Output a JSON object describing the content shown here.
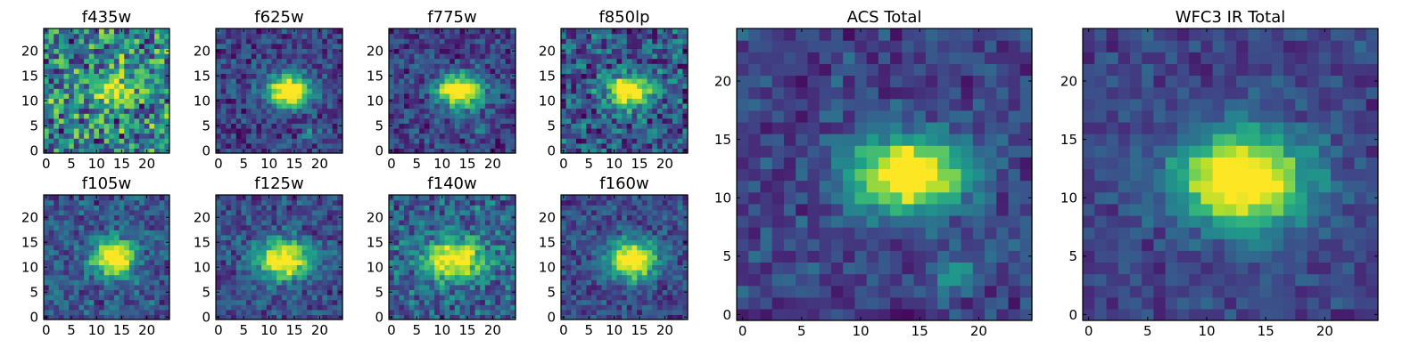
{
  "figure": {
    "background": "#ffffff",
    "colormap": "viridis"
  },
  "chart_data": [
    {
      "type": "heatmap",
      "title": "f435w",
      "grid": false,
      "rows": 25,
      "cols": 25,
      "xlim": [
        -0.5,
        24.5
      ],
      "ylim": [
        -0.5,
        24.5
      ],
      "xticks": [
        0,
        5,
        10,
        15,
        20
      ],
      "yticks": [
        0,
        5,
        10,
        15,
        20
      ],
      "source": {
        "cx": 13,
        "cy": 12.5,
        "sx": 2.3,
        "sy": 2.0,
        "peak": 0.55,
        "base": 0.6,
        "noise": 0.35,
        "seed": 11,
        "extras": []
      }
    },
    {
      "type": "heatmap",
      "title": "f625w",
      "grid": false,
      "rows": 25,
      "cols": 25,
      "xlim": [
        -0.5,
        24.5
      ],
      "ylim": [
        -0.5,
        24.5
      ],
      "xticks": [
        0,
        5,
        10,
        15,
        20
      ],
      "yticks": [
        0,
        5,
        10,
        15,
        20
      ],
      "source": {
        "cx": 14,
        "cy": 12,
        "sx": 3.2,
        "sy": 2.2,
        "peak": 1.0,
        "base": 0.26,
        "noise": 0.16,
        "seed": 23,
        "extras": [
          {
            "cx": 18,
            "cy": 4,
            "sx": 1.0,
            "sy": 1.0,
            "peak": 0.25
          }
        ]
      }
    },
    {
      "type": "heatmap",
      "title": "f775w",
      "grid": false,
      "rows": 25,
      "cols": 25,
      "xlim": [
        -0.5,
        24.5
      ],
      "ylim": [
        -0.5,
        24.5
      ],
      "xticks": [
        0,
        5,
        10,
        15,
        20
      ],
      "yticks": [
        0,
        5,
        10,
        15,
        20
      ],
      "source": {
        "cx": 13.5,
        "cy": 12,
        "sx": 3.3,
        "sy": 2.3,
        "peak": 1.0,
        "base": 0.25,
        "noise": 0.17,
        "seed": 37,
        "extras": [
          {
            "cx": 18,
            "cy": 4,
            "sx": 1.0,
            "sy": 1.0,
            "peak": 0.3
          }
        ]
      }
    },
    {
      "type": "heatmap",
      "title": "f850lp",
      "grid": false,
      "rows": 25,
      "cols": 25,
      "xlim": [
        -0.5,
        24.5
      ],
      "ylim": [
        -0.5,
        24.5
      ],
      "xticks": [
        0,
        5,
        10,
        15,
        20
      ],
      "yticks": [
        0,
        5,
        10,
        15,
        20
      ],
      "source": {
        "cx": 13,
        "cy": 12,
        "sx": 3.2,
        "sy": 2.3,
        "peak": 0.85,
        "base": 0.35,
        "noise": 0.25,
        "seed": 41,
        "extras": [
          {
            "cx": 18,
            "cy": 4,
            "sx": 1.0,
            "sy": 1.0,
            "peak": 0.3
          }
        ]
      }
    },
    {
      "type": "heatmap",
      "title": "f105w",
      "grid": false,
      "rows": 25,
      "cols": 25,
      "xlim": [
        -0.5,
        24.5
      ],
      "ylim": [
        -0.5,
        24.5
      ],
      "xticks": [
        0,
        5,
        10,
        15,
        20
      ],
      "yticks": [
        0,
        5,
        10,
        15,
        20
      ],
      "source": {
        "cx": 13.5,
        "cy": 12,
        "sx": 3.0,
        "sy": 2.4,
        "peak": 0.95,
        "base": 0.35,
        "noise": 0.17,
        "seed": 53,
        "extras": []
      }
    },
    {
      "type": "heatmap",
      "title": "f125w",
      "grid": false,
      "rows": 25,
      "cols": 25,
      "xlim": [
        -0.5,
        24.5
      ],
      "ylim": [
        -0.5,
        24.5
      ],
      "xticks": [
        0,
        5,
        10,
        15,
        20
      ],
      "yticks": [
        0,
        5,
        10,
        15,
        20
      ],
      "source": {
        "cx": 13,
        "cy": 11.5,
        "sx": 3.6,
        "sy": 2.7,
        "peak": 0.9,
        "base": 0.32,
        "noise": 0.14,
        "seed": 67,
        "extras": []
      }
    },
    {
      "type": "heatmap",
      "title": "f140w",
      "grid": false,
      "rows": 25,
      "cols": 25,
      "xlim": [
        -0.5,
        24.5
      ],
      "ylim": [
        -0.5,
        24.5
      ],
      "xticks": [
        0,
        5,
        10,
        15,
        20
      ],
      "yticks": [
        0,
        5,
        10,
        15,
        20
      ],
      "source": {
        "cx": 12.5,
        "cy": 11.5,
        "sx": 4.2,
        "sy": 2.8,
        "peak": 0.8,
        "base": 0.4,
        "noise": 0.2,
        "seed": 79,
        "extras": []
      }
    },
    {
      "type": "heatmap",
      "title": "f160w",
      "grid": false,
      "rows": 25,
      "cols": 25,
      "xlim": [
        -0.5,
        24.5
      ],
      "ylim": [
        -0.5,
        24.5
      ],
      "xticks": [
        0,
        5,
        10,
        15,
        20
      ],
      "yticks": [
        0,
        5,
        10,
        15,
        20
      ],
      "source": {
        "cx": 13.5,
        "cy": 11.5,
        "sx": 3.3,
        "sy": 2.6,
        "peak": 0.95,
        "base": 0.3,
        "noise": 0.14,
        "seed": 83,
        "extras": []
      }
    },
    {
      "type": "heatmap",
      "title": "ACS Total",
      "grid": false,
      "rows": 25,
      "cols": 25,
      "xlim": [
        -0.5,
        24.5
      ],
      "ylim": [
        -0.5,
        24.5
      ],
      "xticks": [
        0,
        5,
        10,
        15,
        20
      ],
      "yticks": [
        0,
        5,
        10,
        15,
        20
      ],
      "source": {
        "cx": 14,
        "cy": 12,
        "sx": 3.4,
        "sy": 2.2,
        "peak": 1.0,
        "base": 0.26,
        "noise": 0.12,
        "seed": 97,
        "extras": [
          {
            "cx": 18,
            "cy": 3.5,
            "sx": 1.0,
            "sy": 1.1,
            "peak": 0.35
          }
        ]
      }
    },
    {
      "type": "heatmap",
      "title": "WFC3 IR Total",
      "grid": false,
      "rows": 25,
      "cols": 25,
      "xlim": [
        -0.5,
        24.5
      ],
      "ylim": [
        -0.5,
        24.5
      ],
      "xticks": [
        0,
        5,
        10,
        15,
        20
      ],
      "yticks": [
        0,
        5,
        10,
        15,
        20
      ],
      "source": {
        "cx": 13,
        "cy": 11.5,
        "sx": 3.8,
        "sy": 2.8,
        "peak": 1.0,
        "base": 0.27,
        "noise": 0.09,
        "seed": 101,
        "extras": []
      }
    }
  ]
}
